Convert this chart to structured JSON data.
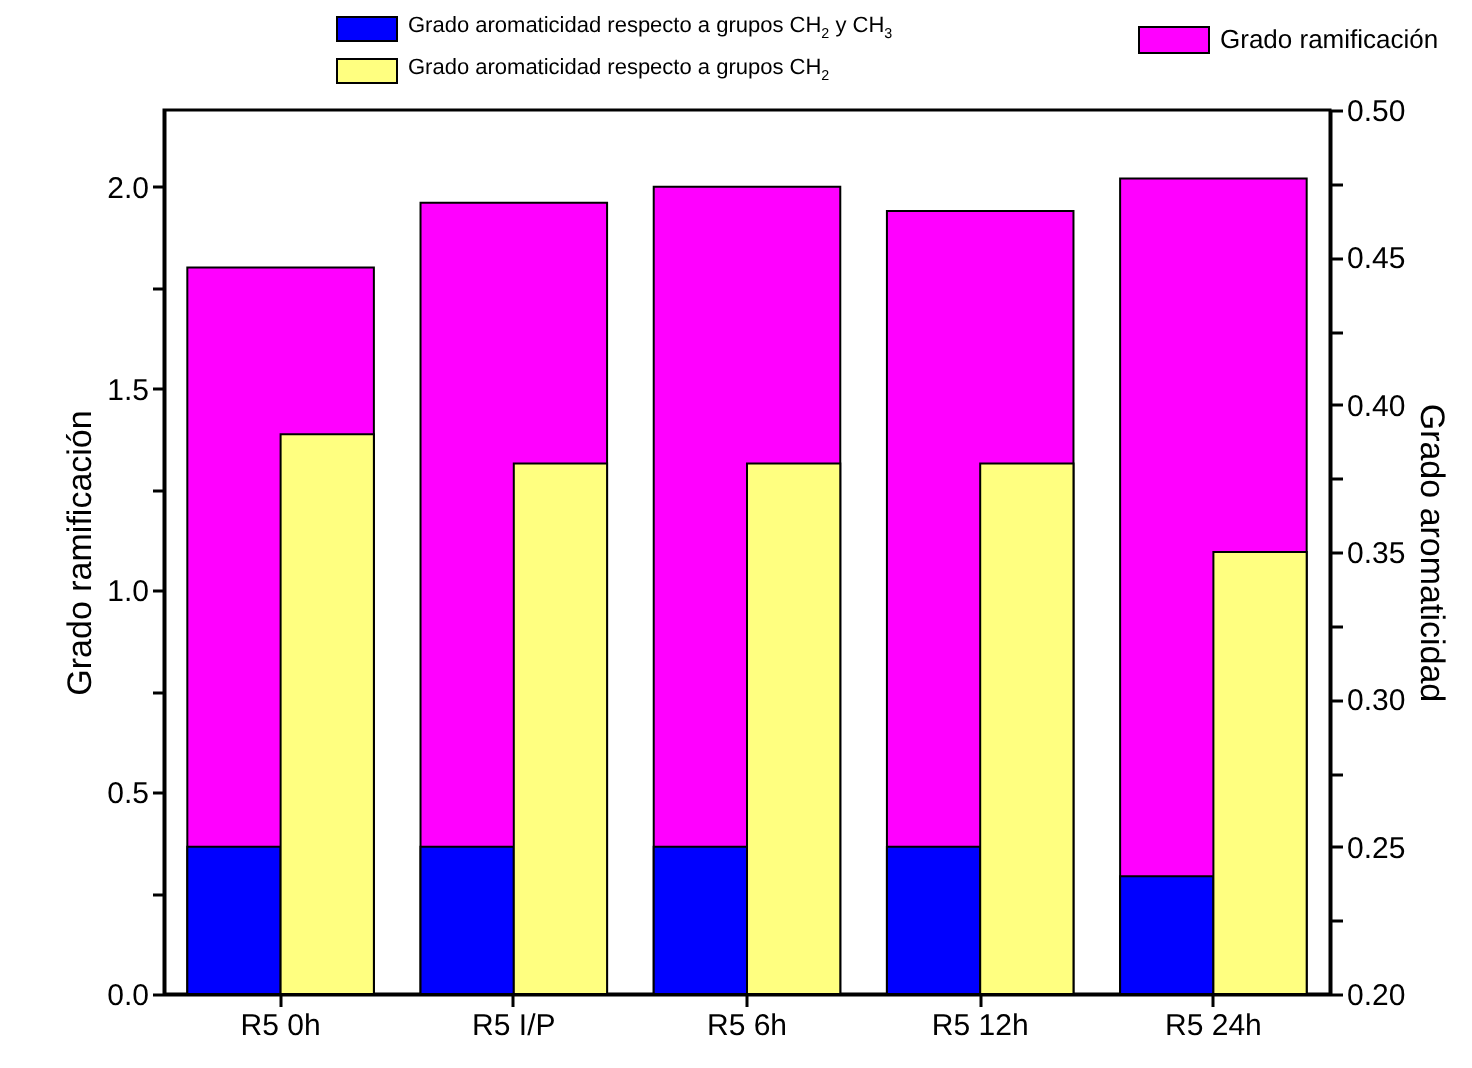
{
  "chart_data": {
    "type": "bar",
    "ylabel": "Grado ramificación",
    "y2label": "Grado aromaticidad",
    "categories": [
      "R5 0h",
      "R5 I/P",
      "R5 6h",
      "R5 12h",
      "R5 24h"
    ],
    "series": [
      {
        "name": "Grado ramificación",
        "color": "#ff00ff",
        "values": [
          1.8,
          1.96,
          2.0,
          1.94,
          2.02
        ]
      },
      {
        "name": "Grado aromaticidad respecto a grupos CH$_{2}$ y CH$_{3}$",
        "color": "#0000ff",
        "axis": "y2",
        "values": [
          0.25,
          0.25,
          0.25,
          0.25,
          0.24
        ]
      },
      {
        "name": "Grado aromaticidad respecto a grupos CH$_{2}$",
        "color": "#ffff80",
        "axis": "y2",
        "values": [
          0.39,
          0.38,
          0.38,
          0.38,
          0.35
        ]
      }
    ],
    "ylim": [
      0,
      2.19
    ],
    "yticks": [
      {
        "value": 0,
        "label": "0.0"
      },
      {
        "value": 0.25,
        "label": null
      },
      0.5,
      {
        "value": 0.75,
        "label": null
      },
      {
        "value": 1,
        "label": "1.0"
      },
      {
        "value": 1.25,
        "label": null
      },
      1.5,
      {
        "value": 1.75,
        "label": null
      },
      {
        "value": 2,
        "label": "2.0"
      }
    ],
    "y2lim": [
      0.2,
      0.5
    ],
    "y2ticks": [
      {
        "value": 0.2,
        "label": "0.20"
      },
      {
        "value": 0.225,
        "label": null
      },
      0.25,
      {
        "value": 0.275,
        "label": null
      },
      {
        "value": 0.3,
        "label": "0.30"
      },
      {
        "value": 0.325,
        "label": null
      },
      0.35,
      {
        "value": 0.375,
        "label": null
      },
      {
        "value": 0.4,
        "label": "0.40"
      },
      {
        "value": 0.425,
        "label": null
      },
      0.45,
      {
        "value": 0.475,
        "label": null
      },
      {
        "value": 0.5,
        "label": "0.50"
      }
    ],
    "legend": "top",
    "grid": false
  }
}
